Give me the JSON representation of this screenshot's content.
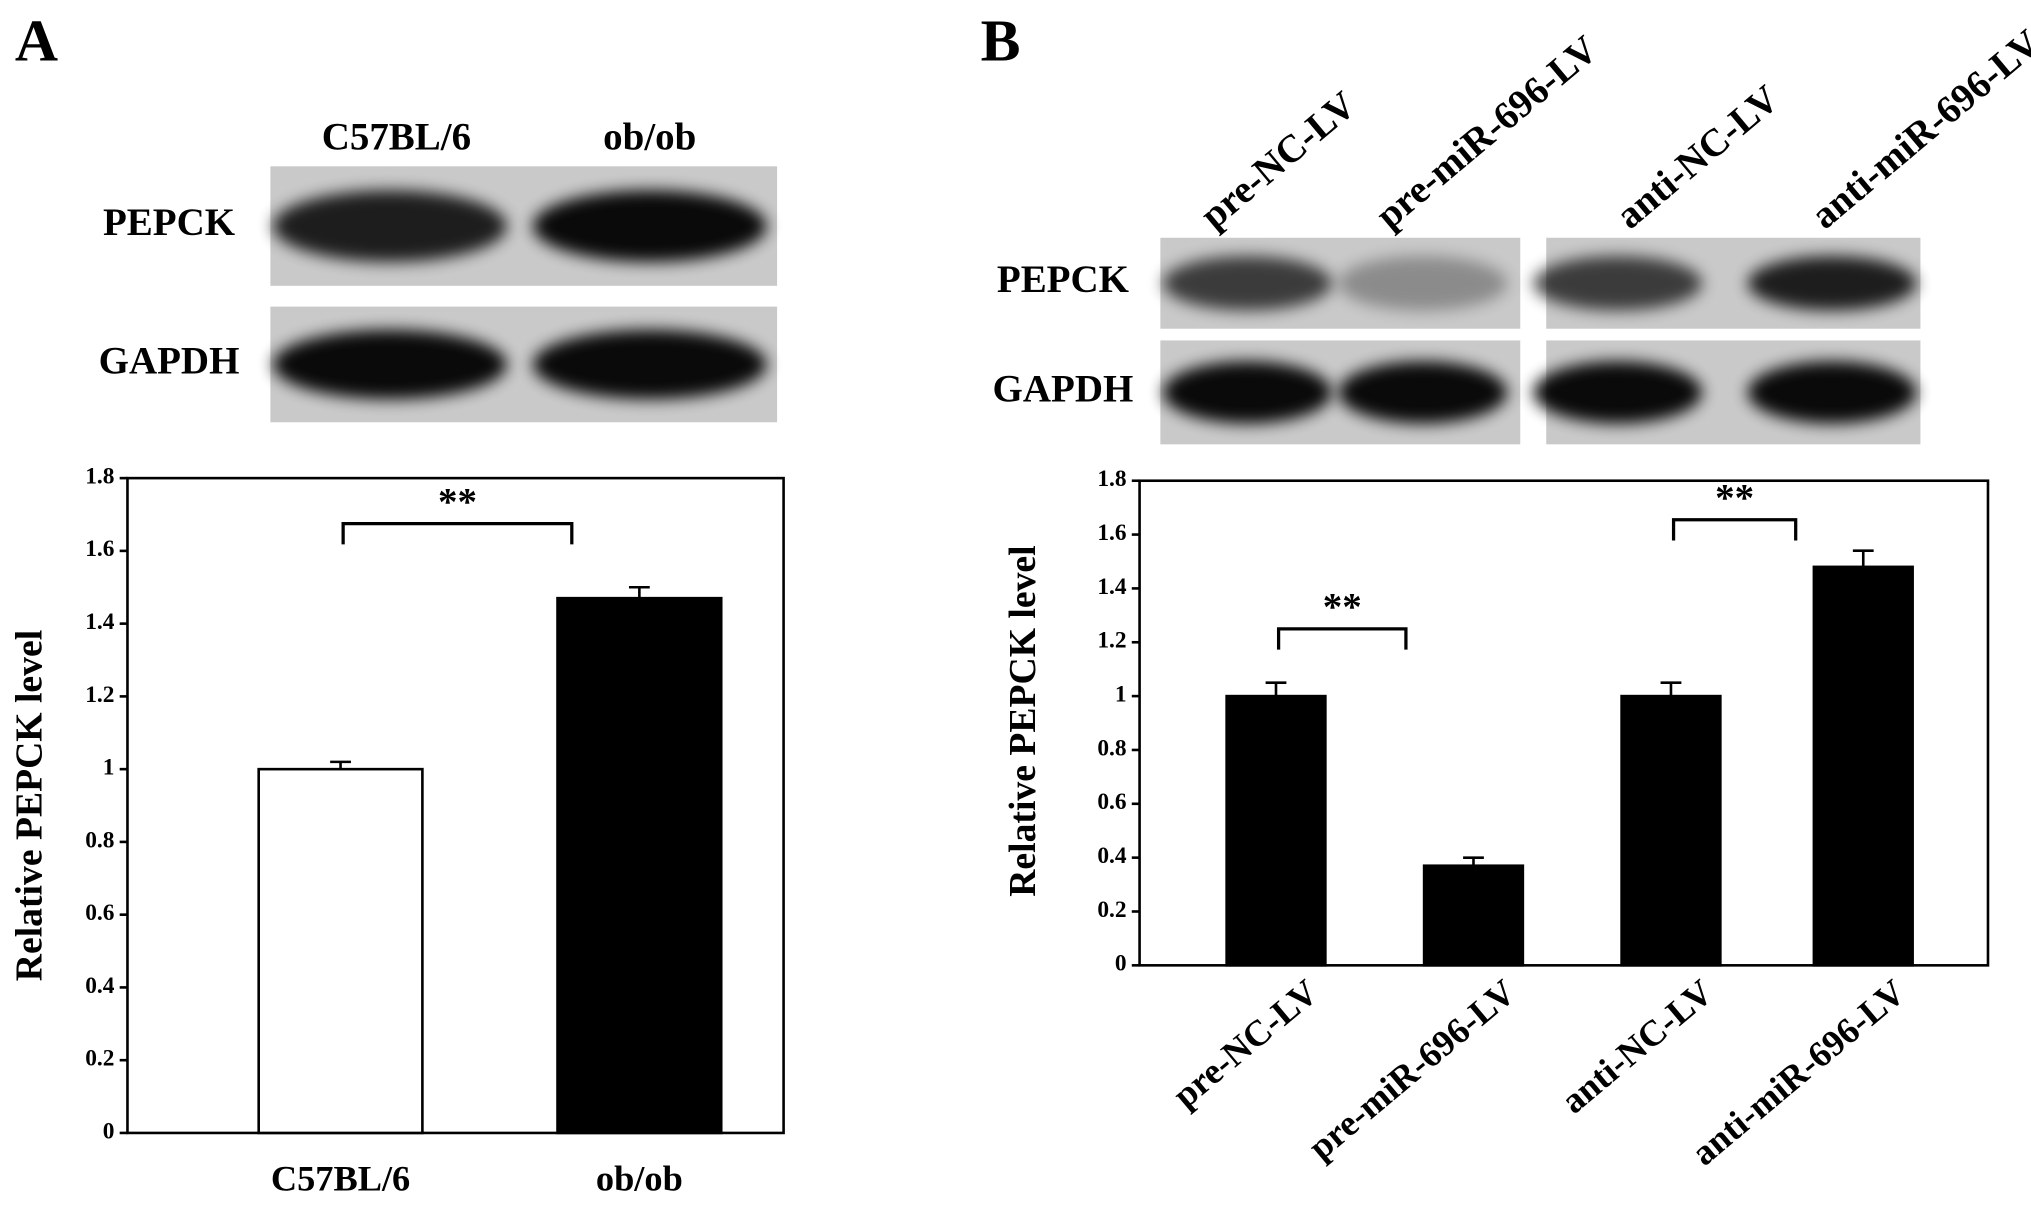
{
  "chart_data": [
    {
      "panel": "A",
      "type": "bar",
      "blot": {
        "lanes": [
          "C57BL/6",
          "ob/ob"
        ],
        "rows": [
          "PEPCK",
          "GAPDH"
        ]
      },
      "y_label": "Relative PEPCK level",
      "categories": [
        "C57BL/6",
        "ob/ob"
      ],
      "values": [
        1,
        1.47
      ],
      "errors": [
        0.02,
        0.03
      ],
      "colors": [
        "#ffffff",
        "#000000"
      ],
      "ylim": [
        0,
        1.8
      ],
      "yticks": [
        0,
        0.2,
        0.4,
        0.6,
        0.8,
        1,
        1.2,
        1.4,
        1.6,
        1.8
      ],
      "annotations": [
        "**"
      ]
    },
    {
      "panel": "B",
      "type": "bar",
      "blot": {
        "lanes": [
          "pre-NC-LV",
          "pre-miR-696-LV",
          "anti-NC-LV",
          "anti-miR-696-LV"
        ],
        "rows": [
          "PEPCK",
          "GAPDH"
        ]
      },
      "y_label": "Relative PEPCK level",
      "categories": [
        "pre-NC-LV",
        "pre-miR-696-LV",
        "anti-NC-LV",
        "anti-miR-696-LV"
      ],
      "values": [
        1,
        0.37,
        1,
        1.48
      ],
      "errors": [
        0.05,
        0.03,
        0.05,
        0.06
      ],
      "colors": [
        "#000000",
        "#000000",
        "#000000",
        "#000000"
      ],
      "ylim": [
        0,
        1.8
      ],
      "yticks": [
        0,
        0.2,
        0.4,
        0.6,
        0.8,
        1,
        1.2,
        1.4,
        1.6,
        1.8
      ],
      "annotations": [
        "**",
        "**"
      ]
    }
  ]
}
